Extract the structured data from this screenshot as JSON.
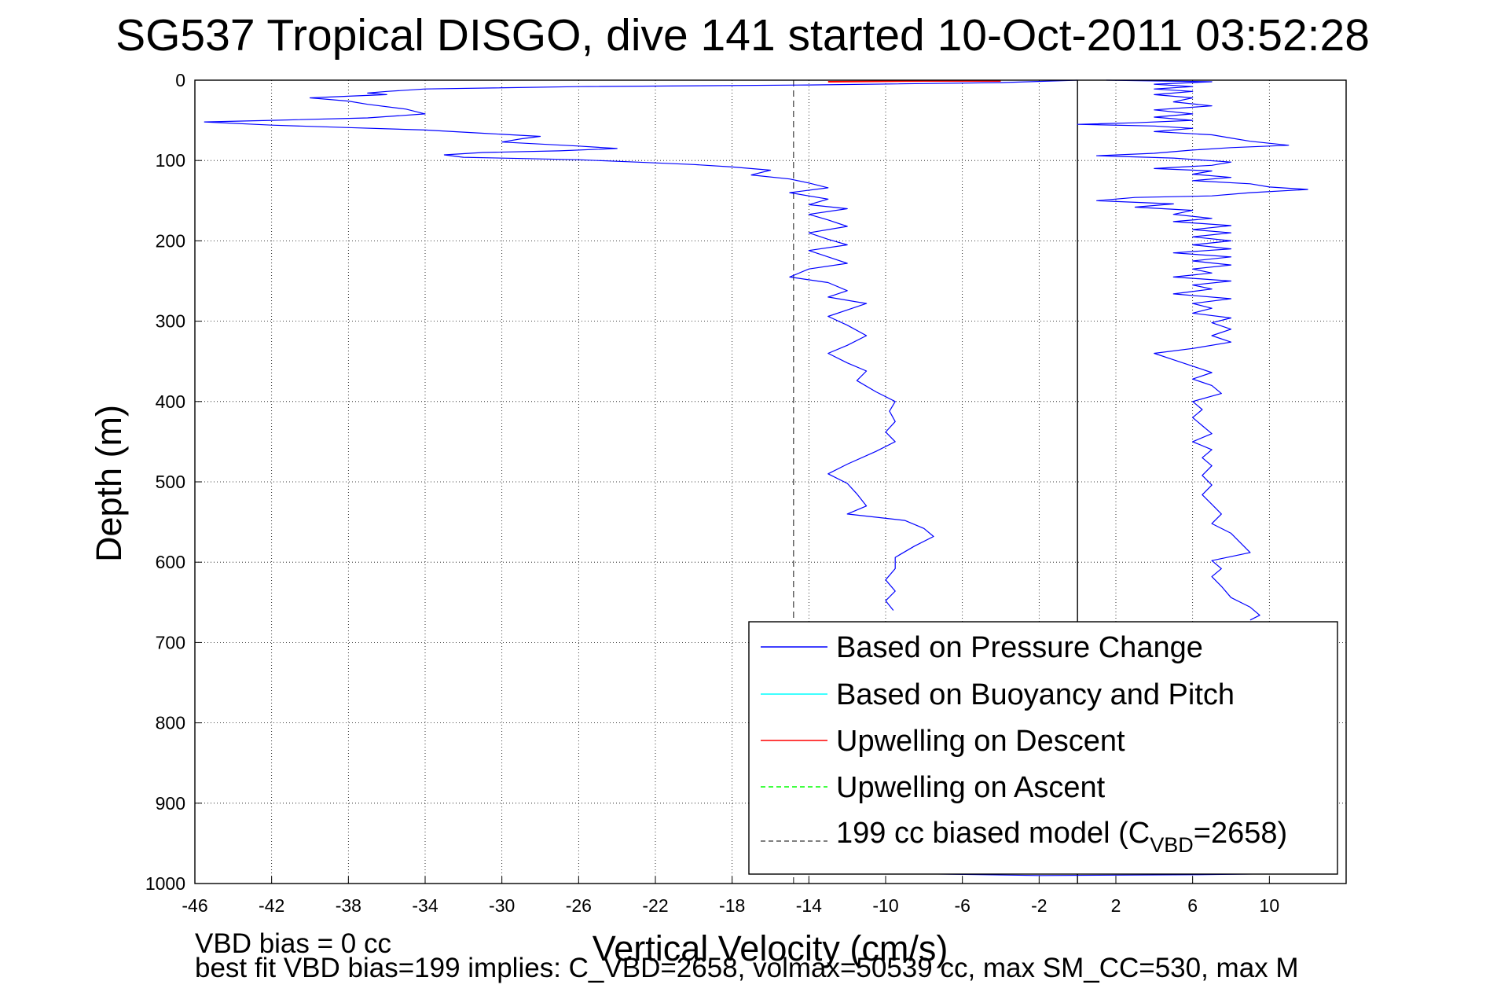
{
  "chart_data": {
    "type": "line",
    "title": "SG537 Tropical DISGO, dive 141 started 10-Oct-2011 03:52:28",
    "xlabel": "Vertical Velocity (cm/s)",
    "ylabel": "Depth (m)",
    "xlim": [
      -46,
      14
    ],
    "ylim": [
      0,
      1000
    ],
    "y_reversed": true,
    "grid": true,
    "xticks": [
      -46,
      -42,
      -38,
      -34,
      -30,
      -26,
      -22,
      -18,
      -14,
      -10,
      -6,
      -2,
      2,
      6,
      10
    ],
    "yticks": [
      0,
      100,
      200,
      300,
      400,
      500,
      600,
      700,
      800,
      900,
      1000
    ],
    "legend_position": "bottom-right",
    "legend": [
      {
        "label": "Based on Pressure Change",
        "color": "#0000ff",
        "style": "solid"
      },
      {
        "label": "Based on Buoyancy and Pitch",
        "color": "#00ffff",
        "style": "solid"
      },
      {
        "label": "Upwelling on Descent",
        "color": "#ff0000",
        "style": "solid"
      },
      {
        "label": "Upwelling on Ascent",
        "color": "#00ff00",
        "style": "dashed"
      },
      {
        "label_main": "199 cc biased model (C",
        "label_sub": "VBD",
        "label_tail": "=2658)",
        "color": "#555555",
        "style": "dashed"
      }
    ],
    "vertical_lines": [
      {
        "x": -14.8,
        "style": "dashed",
        "color": "#555555"
      },
      {
        "x": 0,
        "style": "solid",
        "color": "#000000"
      }
    ],
    "series": [
      {
        "name": "Based on Pressure Change (descent)",
        "color": "#0000ff",
        "points": [
          [
            0,
            0
          ],
          [
            -4,
            3
          ],
          [
            -14,
            6
          ],
          [
            -26,
            8
          ],
          [
            -34,
            11
          ],
          [
            -36,
            14
          ],
          [
            -37,
            16
          ],
          [
            -36,
            18
          ],
          [
            -38,
            20
          ],
          [
            -40,
            22
          ],
          [
            -38,
            26
          ],
          [
            -37,
            30
          ],
          [
            -35,
            36
          ],
          [
            -34,
            42
          ],
          [
            -37,
            47
          ],
          [
            -42,
            50
          ],
          [
            -45.5,
            52
          ],
          [
            -42,
            56
          ],
          [
            -38,
            59
          ],
          [
            -34,
            62
          ],
          [
            -31,
            66
          ],
          [
            -28,
            70
          ],
          [
            -29,
            73
          ],
          [
            -30,
            77
          ],
          [
            -26,
            82
          ],
          [
            -24,
            85
          ],
          [
            -27,
            88
          ],
          [
            -31,
            90
          ],
          [
            -33,
            93
          ],
          [
            -32,
            96
          ],
          [
            -26,
            99
          ],
          [
            -23,
            102
          ],
          [
            -20,
            105
          ],
          [
            -18,
            108
          ],
          [
            -16,
            112
          ],
          [
            -17,
            118
          ],
          [
            -15,
            123
          ],
          [
            -14,
            128
          ],
          [
            -13,
            134
          ],
          [
            -15,
            140
          ],
          [
            -13,
            148
          ],
          [
            -14,
            155
          ],
          [
            -12,
            160
          ],
          [
            -14,
            167
          ],
          [
            -13,
            174
          ],
          [
            -12,
            182
          ],
          [
            -14,
            190
          ],
          [
            -13,
            198
          ],
          [
            -12,
            205
          ],
          [
            -14,
            212
          ],
          [
            -13,
            220
          ],
          [
            -12,
            228
          ],
          [
            -14,
            235
          ],
          [
            -15,
            245
          ],
          [
            -13,
            252
          ],
          [
            -12,
            262
          ],
          [
            -13,
            270
          ],
          [
            -11,
            278
          ],
          [
            -12,
            286
          ],
          [
            -13,
            294
          ],
          [
            -12,
            305
          ],
          [
            -11,
            318
          ],
          [
            -12,
            330
          ],
          [
            -13,
            340
          ],
          [
            -12,
            352
          ],
          [
            -11,
            362
          ],
          [
            -11.5,
            374
          ],
          [
            -10.5,
            388
          ],
          [
            -9.5,
            400
          ],
          [
            -9.8,
            412
          ],
          [
            -9.5,
            425
          ],
          [
            -10,
            438
          ],
          [
            -9.5,
            450
          ],
          [
            -10.5,
            462
          ],
          [
            -12,
            478
          ],
          [
            -13,
            490
          ],
          [
            -12,
            502
          ],
          [
            -11.5,
            515
          ],
          [
            -11,
            530
          ],
          [
            -12,
            540
          ],
          [
            -9,
            548
          ],
          [
            -8,
            558
          ],
          [
            -7.5,
            568
          ],
          [
            -8.5,
            580
          ],
          [
            -9.5,
            594
          ],
          [
            -9.5,
            608
          ],
          [
            -10,
            622
          ],
          [
            -9.5,
            636
          ],
          [
            -10,
            648
          ],
          [
            -9.6,
            660
          ]
        ]
      },
      {
        "name": "Based on Pressure Change (ascent)",
        "color": "#0000ff",
        "points": [
          [
            1.5,
            0
          ],
          [
            7,
            2
          ],
          [
            4,
            5
          ],
          [
            6,
            8
          ],
          [
            4,
            11
          ],
          [
            6,
            14
          ],
          [
            4,
            18
          ],
          [
            6,
            22
          ],
          [
            5,
            27
          ],
          [
            7,
            32
          ],
          [
            4,
            37
          ],
          [
            6,
            42
          ],
          [
            4,
            46
          ],
          [
            6,
            50
          ],
          [
            3,
            53
          ],
          [
            0,
            55
          ],
          [
            4,
            57
          ],
          [
            6,
            60
          ],
          [
            4,
            64
          ],
          [
            7,
            68
          ],
          [
            8,
            72
          ],
          [
            9,
            76
          ],
          [
            11,
            81
          ],
          [
            8,
            84
          ],
          [
            6,
            87
          ],
          [
            4,
            91
          ],
          [
            1,
            94
          ],
          [
            5,
            97
          ],
          [
            8,
            102
          ],
          [
            7,
            106
          ],
          [
            4,
            110
          ],
          [
            7,
            113
          ],
          [
            6,
            117
          ],
          [
            8,
            121
          ],
          [
            6,
            125
          ],
          [
            9,
            129
          ],
          [
            10,
            133
          ],
          [
            12,
            136
          ],
          [
            9,
            140
          ],
          [
            7,
            144
          ],
          [
            3,
            146
          ],
          [
            1,
            150
          ],
          [
            5,
            154
          ],
          [
            3,
            158
          ],
          [
            6,
            162
          ],
          [
            5,
            167
          ],
          [
            7,
            172
          ],
          [
            5,
            176
          ],
          [
            8,
            181
          ],
          [
            6,
            186
          ],
          [
            8,
            190
          ],
          [
            6,
            195
          ],
          [
            8,
            200
          ],
          [
            6,
            205
          ],
          [
            8,
            210
          ],
          [
            5,
            215
          ],
          [
            8,
            220
          ],
          [
            6,
            225
          ],
          [
            8,
            230
          ],
          [
            6,
            235
          ],
          [
            7,
            240
          ],
          [
            5,
            245
          ],
          [
            8,
            250
          ],
          [
            6,
            255
          ],
          [
            7,
            260
          ],
          [
            5,
            266
          ],
          [
            8,
            272
          ],
          [
            6,
            278
          ],
          [
            7,
            284
          ],
          [
            6,
            290
          ],
          [
            8,
            296
          ],
          [
            7,
            302
          ],
          [
            8,
            310
          ],
          [
            7,
            318
          ],
          [
            8,
            326
          ],
          [
            6,
            334
          ],
          [
            4,
            340
          ],
          [
            5,
            348
          ],
          [
            6,
            356
          ],
          [
            7,
            364
          ],
          [
            6,
            372
          ],
          [
            7,
            380
          ],
          [
            7.5,
            390
          ],
          [
            6,
            400
          ],
          [
            6.5,
            410
          ],
          [
            6,
            420
          ],
          [
            6.5,
            430
          ],
          [
            7,
            440
          ],
          [
            6,
            450
          ],
          [
            7,
            460
          ],
          [
            6.5,
            470
          ],
          [
            7,
            480
          ],
          [
            6.5,
            492
          ],
          [
            7,
            504
          ],
          [
            6.5,
            516
          ],
          [
            7,
            528
          ],
          [
            7.5,
            540
          ],
          [
            7,
            552
          ],
          [
            8,
            564
          ],
          [
            8.5,
            576
          ],
          [
            9,
            588
          ],
          [
            7,
            598
          ],
          [
            7.5,
            608
          ],
          [
            7,
            618
          ],
          [
            7.5,
            630
          ],
          [
            8,
            644
          ],
          [
            9,
            656
          ],
          [
            9.5,
            666
          ],
          [
            9,
            672
          ]
        ]
      },
      {
        "name": "Based on Pressure Change (bottom)",
        "color": "#0000ff",
        "points": [
          [
            -8,
            988
          ],
          [
            -2,
            990
          ],
          [
            6,
            989
          ],
          [
            10,
            988
          ]
        ]
      },
      {
        "name": "Upwelling on Descent",
        "color": "#ff0000",
        "points": [
          [
            -13,
            2
          ],
          [
            -8,
            1
          ],
          [
            -4,
            1
          ]
        ]
      }
    ]
  },
  "footer": {
    "line1": "VBD bias = 0 cc",
    "line2": "best fit VBD bias=199 implies: C_VBD=2658, volmax=50539 cc, max SM_CC=530, max M"
  }
}
